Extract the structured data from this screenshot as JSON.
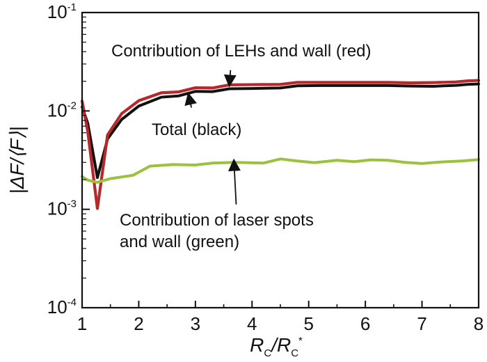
{
  "chart_data": {
    "type": "line",
    "xlabel": {
      "base": "R",
      "subscript": "C",
      "separator": "/",
      "base2": "R",
      "subscript2": "C",
      "superscript2": "*"
    },
    "ylabel": "|ΔF/⟨F⟩|",
    "xlim": [
      1,
      8
    ],
    "ylim": [
      0.0001,
      0.1
    ],
    "x_scale": "linear",
    "y_scale": "log",
    "x_ticks": [
      "1",
      "2",
      "3",
      "4",
      "5",
      "6",
      "7",
      "8"
    ],
    "y_ticks": [
      {
        "base": "10",
        "exp": "-1"
      },
      {
        "base": "10",
        "exp": "-2"
      },
      {
        "base": "10",
        "exp": "-3"
      },
      {
        "base": "10",
        "exp": "-4"
      }
    ],
    "grid": false,
    "series": [
      {
        "name": "Total (black)",
        "color": "#111111",
        "x": [
          1.0,
          1.1,
          1.27,
          1.45,
          1.7,
          2.0,
          2.4,
          2.7,
          3.0,
          3.3,
          3.6,
          4.0,
          4.5,
          4.8,
          5.2,
          5.6,
          6.0,
          6.4,
          6.8,
          7.2,
          7.6,
          7.8,
          8.0
        ],
        "y": [
          0.011,
          0.0075,
          0.0021,
          0.0052,
          0.0082,
          0.0112,
          0.0138,
          0.0142,
          0.0158,
          0.0157,
          0.0168,
          0.0169,
          0.0171,
          0.018,
          0.0181,
          0.0181,
          0.0181,
          0.0181,
          0.0179,
          0.0178,
          0.0182,
          0.0186,
          0.0188
        ]
      },
      {
        "name": "Contribution of LEHs and wall (red)",
        "color": "#b5292b",
        "x": [
          1.0,
          1.1,
          1.27,
          1.45,
          1.7,
          2.0,
          2.4,
          2.7,
          3.0,
          3.3,
          3.6,
          4.0,
          4.5,
          4.8,
          5.2,
          5.6,
          6.0,
          6.4,
          6.8,
          7.2,
          7.6,
          7.8,
          8.0
        ],
        "y": [
          0.0126,
          0.0062,
          0.00102,
          0.0057,
          0.0094,
          0.0127,
          0.0153,
          0.0156,
          0.0172,
          0.0171,
          0.0184,
          0.0185,
          0.0186,
          0.0195,
          0.0195,
          0.0195,
          0.0195,
          0.0195,
          0.0193,
          0.0194,
          0.0197,
          0.0202,
          0.0204
        ]
      },
      {
        "name": "Contribution of laser spots and wall (green)",
        "color": "#9ac23c",
        "x": [
          1.0,
          1.1,
          1.27,
          1.5,
          1.9,
          2.2,
          2.6,
          3.0,
          3.3,
          3.7,
          4.2,
          4.5,
          4.8,
          5.1,
          5.5,
          5.8,
          6.1,
          6.4,
          6.7,
          7.0,
          7.3,
          7.7,
          8.0
        ],
        "y": [
          0.00215,
          0.00198,
          0.00188,
          0.00205,
          0.00222,
          0.00275,
          0.00285,
          0.00282,
          0.00295,
          0.003,
          0.00295,
          0.00325,
          0.0031,
          0.00298,
          0.00315,
          0.00305,
          0.00318,
          0.00315,
          0.003,
          0.00292,
          0.00302,
          0.0031,
          0.0032
        ]
      }
    ],
    "annotations": [
      {
        "name": "red-curve-annotation",
        "lines": [
          "Contribution of LEHs and wall (red)"
        ],
        "point_x": 3.6,
        "point_y": 0.0184,
        "arrow_start_x": 3.62,
        "arrow_start_y": 0.026
      },
      {
        "name": "black-curve-annotation",
        "lines": [
          "Total (black)"
        ],
        "point_x": 2.88,
        "point_y": 0.0146,
        "arrow_start_x": 2.93,
        "arrow_start_y": 0.0108
      },
      {
        "name": "green-curve-annotation",
        "lines": [
          "Contribution of laser spots",
          "and wall (green)"
        ],
        "point_x": 3.68,
        "point_y": 0.0031,
        "arrow_start_x": 3.72,
        "arrow_start_y": 0.00112
      }
    ]
  }
}
